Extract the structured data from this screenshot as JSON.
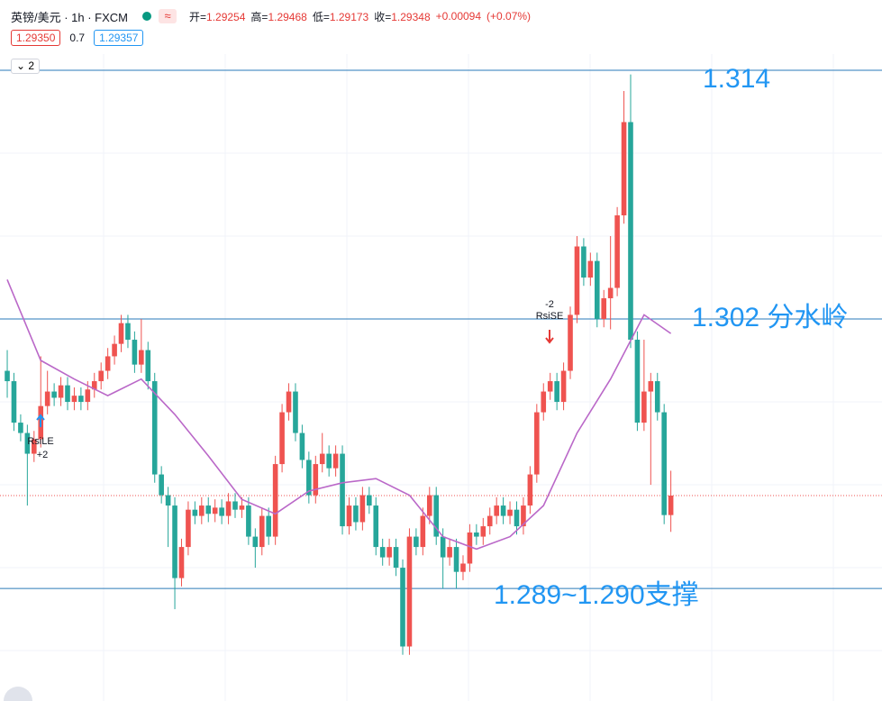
{
  "chart_data": {
    "type": "candlestick",
    "title": "英镑/美元 · 1h · FXCM",
    "ohlc_readout": [
      {
        "label": "开=",
        "value": 1.29254
      },
      {
        "label": "高=",
        "value": 1.29468
      },
      {
        "label": "低=",
        "value": 1.29173
      },
      {
        "label": "收=",
        "value": 1.29348
      }
    ],
    "change": {
      "value": 0.00094,
      "label": "+0.00094"
    },
    "change_pct": {
      "value": 0.07,
      "label": "(+0.07%)"
    },
    "bid": {
      "value": 1.2935,
      "label": "1.29350"
    },
    "spread": 0.7,
    "ask": 1.29357,
    "layers": 2,
    "up_color": "#ef5350",
    "down_color": "#26a69a",
    "open": [
      1.2995,
      1.299,
      1.297,
      1.2965,
      1.2955,
      1.2962,
      1.2978,
      1.2985,
      1.2982,
      1.2988,
      1.298,
      1.2983,
      1.298,
      1.2986,
      1.299,
      1.2995,
      1.3002,
      1.3008,
      1.3018,
      1.301,
      1.2998,
      1.3005,
      1.299,
      1.2945,
      1.2935,
      1.293,
      1.2895,
      1.291,
      1.2928,
      1.2925,
      1.293,
      1.2926,
      1.2929,
      1.2925,
      1.2932,
      1.2928,
      1.293,
      1.2915,
      1.291,
      1.2925,
      1.2915,
      1.295,
      1.2975,
      1.2985,
      1.2965,
      1.2952,
      1.2935,
      1.295,
      1.2955,
      1.2948,
      1.2955,
      1.292,
      1.293,
      1.2922,
      1.2935,
      1.293,
      1.291,
      1.2905,
      1.291,
      1.29,
      1.2862,
      1.2915,
      1.291,
      1.2925,
      1.2935,
      1.2915,
      1.2905,
      1.291,
      1.2898,
      1.2902,
      1.2917,
      1.2915,
      1.292,
      1.2925,
      1.293,
      1.2925,
      1.2928,
      1.292,
      1.293,
      1.2945,
      1.2975,
      1.2985,
      1.299,
      1.298,
      1.2995,
      1.3022,
      1.3055,
      1.304,
      1.3048,
      1.302,
      1.303,
      1.3035,
      1.307,
      1.3115,
      1.301,
      1.297,
      1.2985,
      1.299,
      1.2975,
      1.29254
    ],
    "high": [
      1.3005,
      1.2994,
      1.2974,
      1.2969,
      1.2966,
      1.3002,
      1.2995,
      1.2989,
      1.2992,
      1.2992,
      1.2987,
      1.2987,
      1.299,
      1.2994,
      1.2999,
      1.3006,
      1.3012,
      1.3022,
      1.3022,
      1.3014,
      1.302,
      1.3009,
      1.2994,
      1.2949,
      1.2939,
      1.2934,
      1.2914,
      1.2932,
      1.2932,
      1.2934,
      1.2934,
      1.2933,
      1.2933,
      1.2936,
      1.2936,
      1.2934,
      1.2934,
      1.2919,
      1.2929,
      1.2929,
      1.2954,
      1.2979,
      1.2989,
      1.2989,
      1.2969,
      1.2956,
      1.2954,
      1.2965,
      1.2959,
      1.2959,
      1.2959,
      1.2934,
      1.2934,
      1.2939,
      1.2939,
      1.2934,
      1.2914,
      1.2914,
      1.2914,
      1.2904,
      1.2919,
      1.2919,
      1.2929,
      1.2939,
      1.2939,
      1.2919,
      1.2914,
      1.2914,
      1.2906,
      1.2921,
      1.2921,
      1.2924,
      1.2929,
      1.2934,
      1.2934,
      1.2932,
      1.2932,
      1.2934,
      1.2949,
      1.2979,
      1.2989,
      1.2994,
      1.2994,
      1.2999,
      1.3026,
      1.306,
      1.3059,
      1.3052,
      1.3052,
      1.3034,
      1.306,
      1.3074,
      1.313,
      1.3138,
      1.3014,
      1.301,
      1.2994,
      1.2994,
      1.2979,
      1.29468
    ],
    "low": [
      1.2982,
      1.2966,
      1.2961,
      1.293,
      1.2951,
      1.2958,
      1.2974,
      1.2978,
      1.2978,
      1.2976,
      1.2976,
      1.2976,
      1.2976,
      1.2982,
      1.2986,
      1.2991,
      1.2998,
      1.3004,
      1.3006,
      1.2994,
      1.2994,
      1.2986,
      1.2941,
      1.2931,
      1.291,
      1.288,
      1.2891,
      1.2906,
      1.2921,
      1.2921,
      1.2922,
      1.2922,
      1.2921,
      1.2921,
      1.2924,
      1.2924,
      1.2911,
      1.29,
      1.2906,
      1.2911,
      1.2911,
      1.2946,
      1.2971,
      1.2961,
      1.2948,
      1.2931,
      1.2931,
      1.2946,
      1.2944,
      1.2944,
      1.2916,
      1.2916,
      1.2918,
      1.2918,
      1.2926,
      1.2906,
      1.2901,
      1.2901,
      1.2896,
      1.2858,
      1.2858,
      1.2906,
      1.2906,
      1.2921,
      1.2911,
      1.289,
      1.2901,
      1.289,
      1.2894,
      1.2898,
      1.2911,
      1.2911,
      1.2916,
      1.2921,
      1.2921,
      1.2921,
      1.2916,
      1.2916,
      1.2926,
      1.2941,
      1.2971,
      1.2981,
      1.2976,
      1.2976,
      1.2991,
      1.3018,
      1.3036,
      1.3036,
      1.3016,
      1.3016,
      1.3015,
      1.3031,
      1.3066,
      1.3006,
      1.2966,
      1.2966,
      1.294,
      1.2971,
      1.2921,
      1.29173
    ],
    "close": [
      1.299,
      1.297,
      1.2965,
      1.2955,
      1.2962,
      1.2978,
      1.2985,
      1.2982,
      1.2988,
      1.298,
      1.2983,
      1.298,
      1.2986,
      1.299,
      1.2995,
      1.3002,
      1.3008,
      1.3018,
      1.301,
      1.2998,
      1.3005,
      1.299,
      1.2945,
      1.2935,
      1.293,
      1.2895,
      1.291,
      1.2928,
      1.2925,
      1.293,
      1.2926,
      1.2929,
      1.2925,
      1.2932,
      1.2928,
      1.293,
      1.2915,
      1.291,
      1.2925,
      1.2915,
      1.295,
      1.2975,
      1.2985,
      1.2965,
      1.2952,
      1.2935,
      1.295,
      1.2955,
      1.2948,
      1.2955,
      1.292,
      1.293,
      1.2922,
      1.2935,
      1.293,
      1.291,
      1.2905,
      1.291,
      1.29,
      1.2862,
      1.2915,
      1.291,
      1.2925,
      1.2935,
      1.2915,
      1.2905,
      1.291,
      1.2898,
      1.2902,
      1.2917,
      1.2915,
      1.292,
      1.2925,
      1.293,
      1.2925,
      1.2928,
      1.292,
      1.293,
      1.2945,
      1.2975,
      1.2985,
      1.299,
      1.298,
      1.2995,
      1.3022,
      1.3055,
      1.304,
      1.3048,
      1.302,
      1.303,
      1.3035,
      1.307,
      1.3115,
      1.301,
      1.297,
      1.2985,
      1.299,
      1.2975,
      1.29254,
      1.29348
    ],
    "ma": {
      "color": "#ba68c8",
      "x": [
        0,
        5,
        10,
        15,
        20,
        25,
        30,
        35,
        40,
        45,
        50,
        55,
        60,
        65,
        70,
        75,
        80,
        85,
        90,
        95,
        99
      ],
      "values": [
        1.3039,
        1.3,
        1.2991,
        1.2983,
        1.2991,
        1.2974,
        1.2954,
        1.2933,
        1.2926,
        1.2937,
        1.2941,
        1.2943,
        1.2935,
        1.2915,
        1.2909,
        1.2915,
        1.293,
        1.2965,
        1.2991,
        1.3022,
        1.3013
      ]
    },
    "xlim": [
      -1.08,
      130.5
    ],
    "ylim": [
      1.28357,
      1.31739
    ],
    "grid": true,
    "level_color": "#2a7ab8",
    "label_color": "#2196f3",
    "levels": [
      {
        "value": 1.314,
        "label": "1.314"
      },
      {
        "value": 1.302,
        "label": "1.302 分水岭"
      },
      {
        "value": 1.289,
        "label": "1.289~1.290支撑"
      }
    ],
    "annotations": {
      "long_entry": "RsiLE",
      "long_qty": "+2",
      "short_qty": "-2",
      "short_entry": "RsiSE"
    }
  }
}
